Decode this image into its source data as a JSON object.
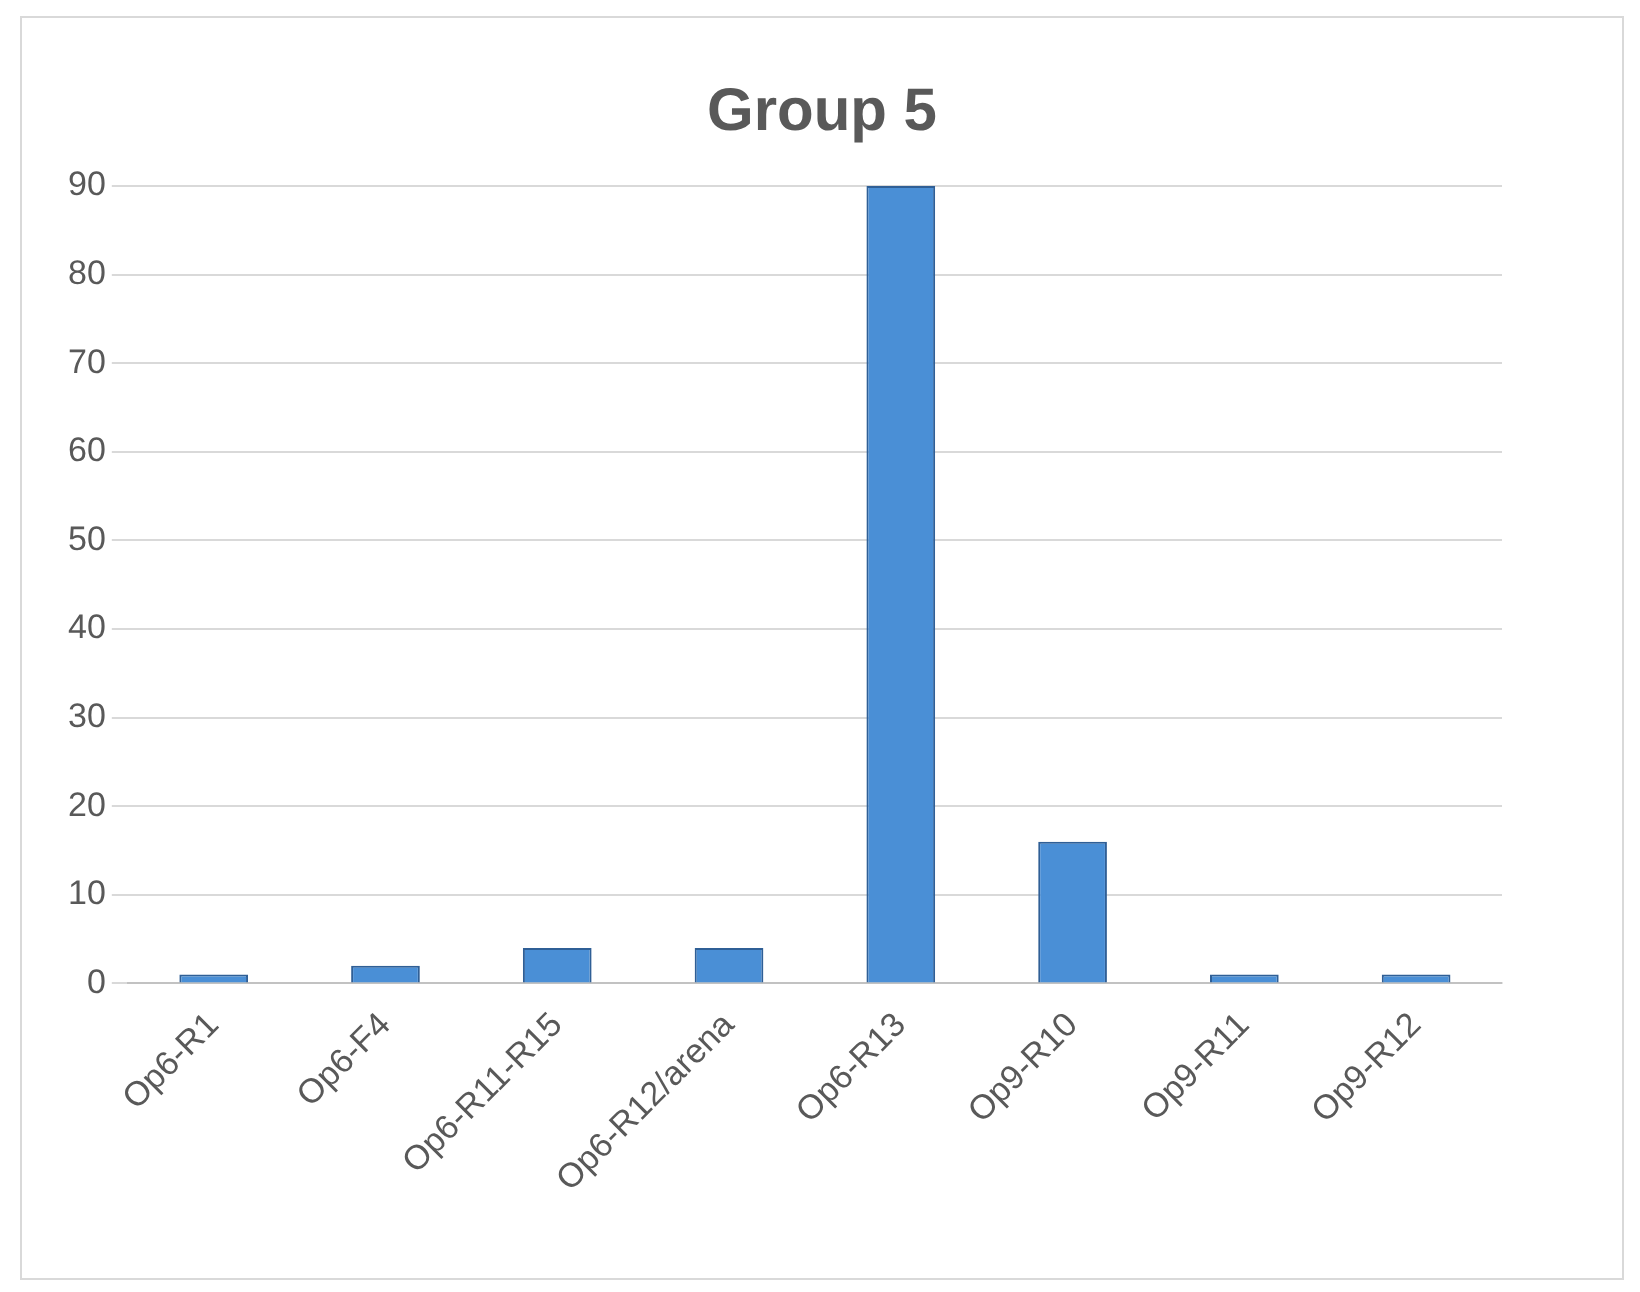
{
  "chart_data": {
    "type": "bar",
    "title": "Group 5",
    "categories": [
      "Op6-R1",
      "Op6-F4",
      "Op6-R11-R15",
      "Op6-R12/arena",
      "Op6-R13",
      "Op9-R10",
      "Op9-R11",
      "Op9-R12"
    ],
    "values": [
      1,
      2,
      4,
      4,
      90,
      16,
      1,
      1
    ],
    "color": "#4a8fd6",
    "ylim": [
      0,
      90
    ],
    "yticks": [
      0,
      10,
      20,
      30,
      40,
      50,
      60,
      70,
      80,
      90
    ],
    "grid": "y"
  }
}
